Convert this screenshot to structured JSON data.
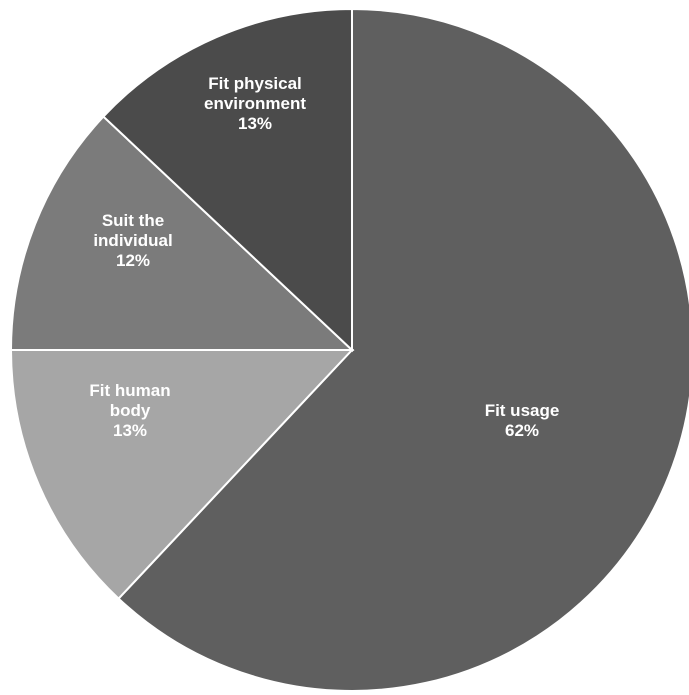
{
  "chart_data": {
    "type": "pie",
    "title": "",
    "slices": [
      {
        "label": [
          "Fit usage"
        ],
        "value": 62,
        "value_label": "62%",
        "color": "#5f5f5f"
      },
      {
        "label": [
          "Fit human",
          "body"
        ],
        "value": 13,
        "value_label": "13%",
        "color": "#a6a6a6"
      },
      {
        "label": [
          "Suit the",
          "individual"
        ],
        "value": 12,
        "value_label": "12%",
        "color": "#7b7b7b"
      },
      {
        "label": [
          "Fit physical",
          "environment"
        ],
        "value": 13,
        "value_label": "13%",
        "color": "#4b4b4b"
      }
    ],
    "start_angle": "12 o'clock",
    "direction": "clockwise",
    "legend": "none",
    "data_labels": "inside"
  }
}
